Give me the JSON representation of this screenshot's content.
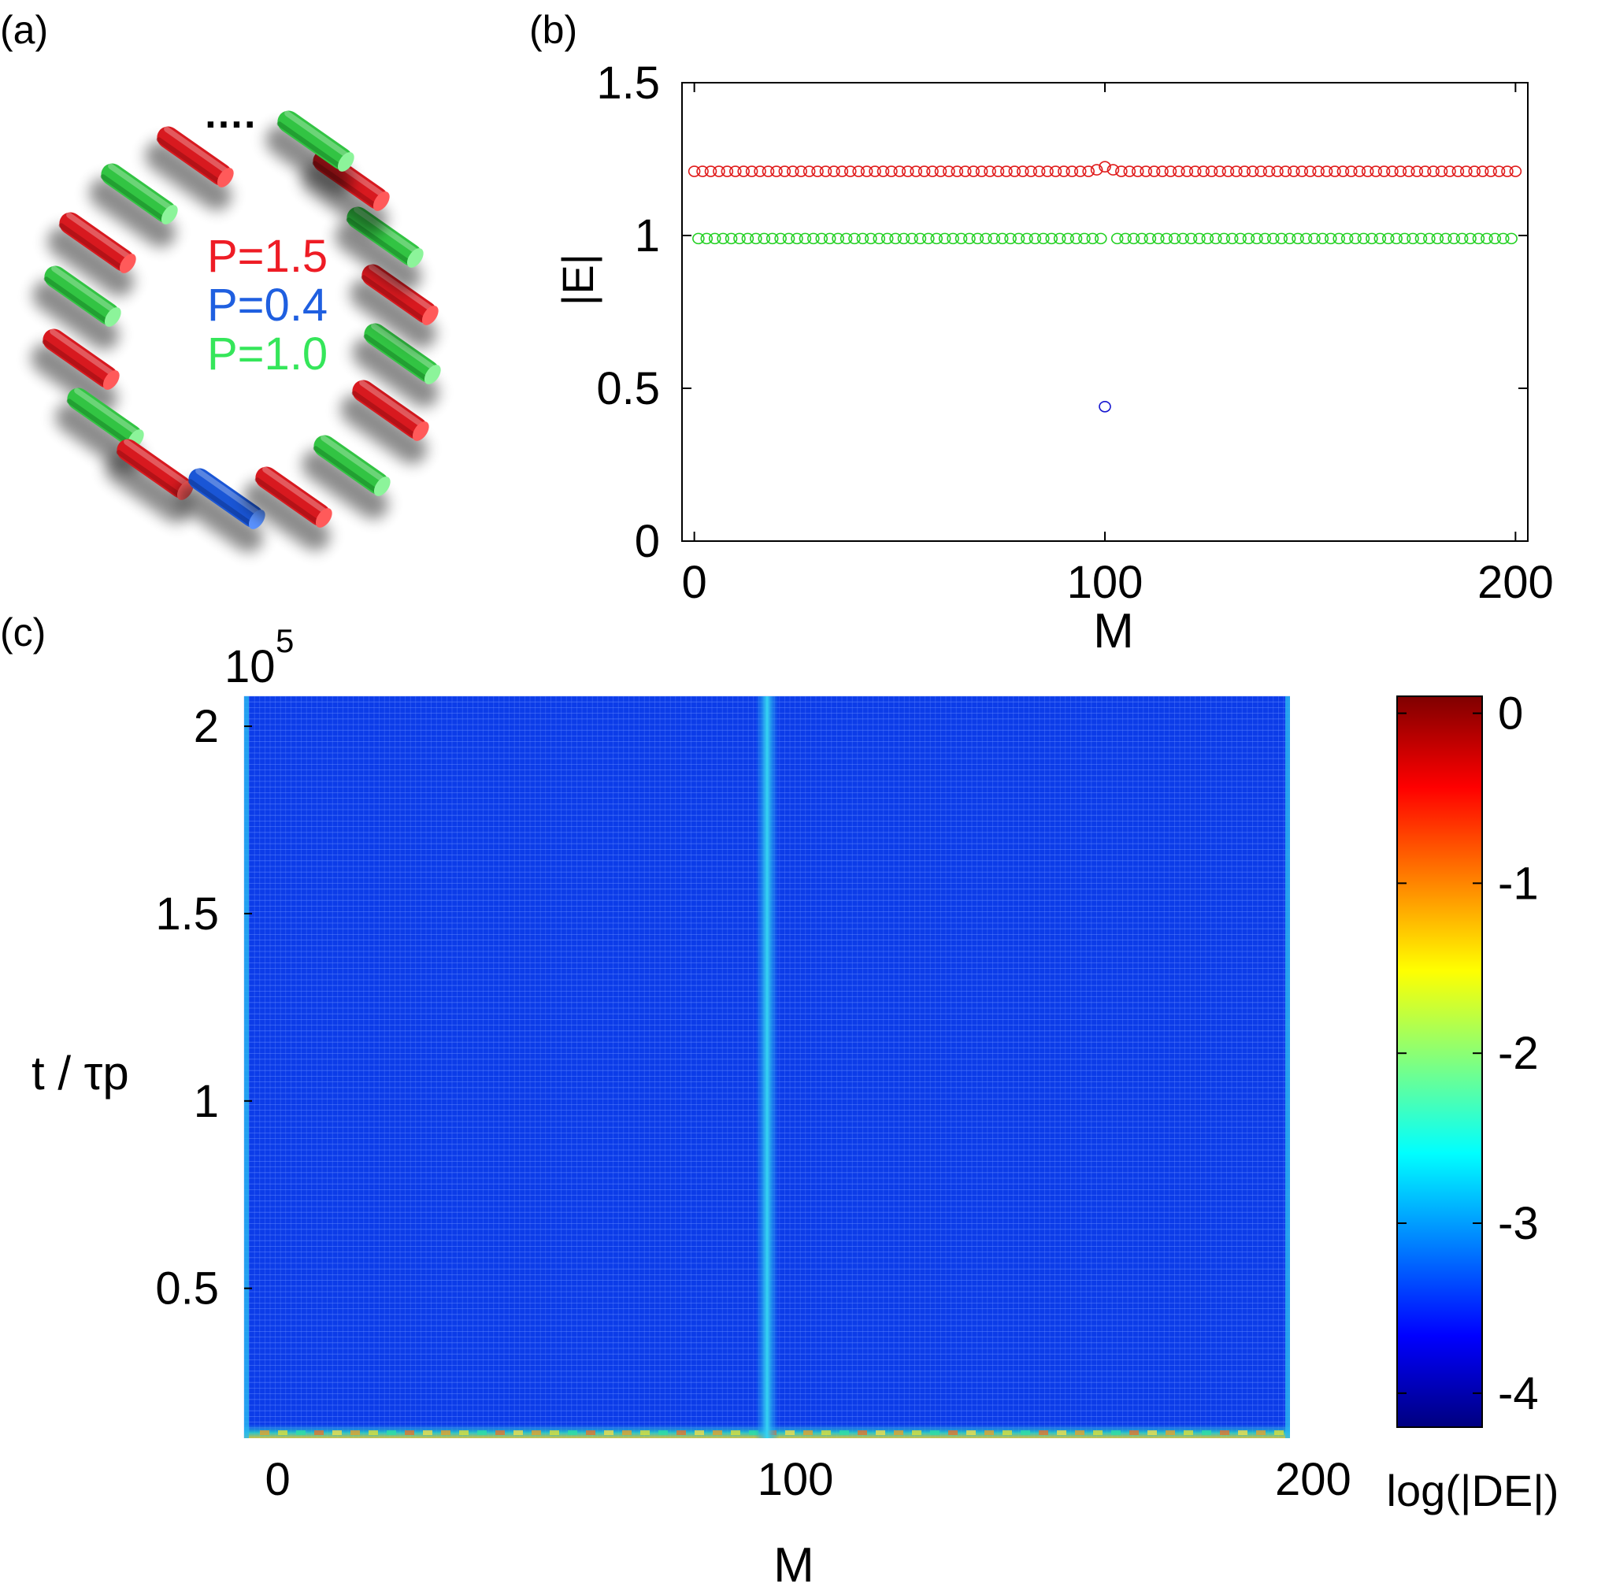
{
  "panels": {
    "a": {
      "label": "(a)",
      "legend": [
        {
          "text": "P=1.5",
          "color": "#ee1c25"
        },
        {
          "text": "P=0.4",
          "color": "#1f5fe0"
        },
        {
          "text": "P=1.0",
          "color": "#35e65a"
        }
      ],
      "ellipsis": "….",
      "rods": [
        {
          "color": "red"
        },
        {
          "color": "green"
        },
        {
          "color": "red"
        },
        {
          "color": "green"
        },
        {
          "color": "red"
        },
        {
          "color": "green"
        },
        {
          "color": "red"
        },
        {
          "color": "blue"
        },
        {
          "color": "red"
        },
        {
          "color": "green"
        },
        {
          "color": "red"
        },
        {
          "color": "green"
        },
        {
          "color": "red"
        },
        {
          "color": "green"
        },
        {
          "color": "red"
        },
        {
          "color": "green"
        }
      ]
    },
    "b": {
      "label": "(b)"
    },
    "c": {
      "label": "(c)"
    }
  },
  "chart_data": [
    {
      "type": "scatter",
      "panel": "b",
      "xlabel": "M",
      "ylabel": "|E|",
      "xlim": [
        -3,
        203
      ],
      "ylim": [
        0,
        1.5
      ],
      "xticks": [
        0,
        100,
        200
      ],
      "yticks": [
        0,
        0.5,
        1,
        1.5
      ],
      "xtick_labels": [
        "0",
        "100",
        "200"
      ],
      "ytick_labels": [
        "0",
        "0.5",
        "1",
        "1.5"
      ],
      "series": [
        {
          "color": "#e01b1b",
          "marker": "open-circle",
          "x_range": [
            0,
            200
          ],
          "step": 2,
          "y": 1.21,
          "bumps": [
            {
              "x": 98,
              "y": 1.215
            },
            {
              "x": 100,
              "y": 1.225
            },
            {
              "x": 102,
              "y": 1.215
            }
          ]
        },
        {
          "color": "#22d022",
          "marker": "open-circle",
          "x_range": [
            1,
            199
          ],
          "step": 2,
          "y": 0.99,
          "skip": [
            101
          ]
        },
        {
          "color": "#1515d0",
          "marker": "open-circle",
          "points": [
            [
              100,
              0.44
            ]
          ]
        }
      ]
    },
    {
      "type": "heatmap",
      "panel": "c",
      "xlabel": "M",
      "ylabel": "t / τp",
      "y_exponent": "10",
      "y_exponent_power": "5",
      "xlim": [
        -1,
        201
      ],
      "ylim": [
        0.1,
        2.08
      ],
      "xticks": [
        0,
        100,
        200
      ],
      "xtick_labels": [
        "0",
        "100",
        "200"
      ],
      "yticks": [
        0.5,
        1,
        1.5,
        2
      ],
      "ytick_labels": [
        "0.5",
        "1",
        "1.5",
        "2"
      ],
      "background_log_value": -3.6,
      "ridge": {
        "x": 100,
        "log_value": -2.8
      },
      "bottom_transient": "t < 0.15 (values up to about -0.5)",
      "colorbar": {
        "label": "log(|DE|)",
        "range": [
          -4.2,
          0.1
        ],
        "ticks": [
          0,
          -1,
          -2,
          -3,
          -4
        ],
        "tick_labels": [
          "0",
          "-1",
          "-2",
          "-3",
          "-4"
        ],
        "colormap": "jet"
      }
    }
  ]
}
